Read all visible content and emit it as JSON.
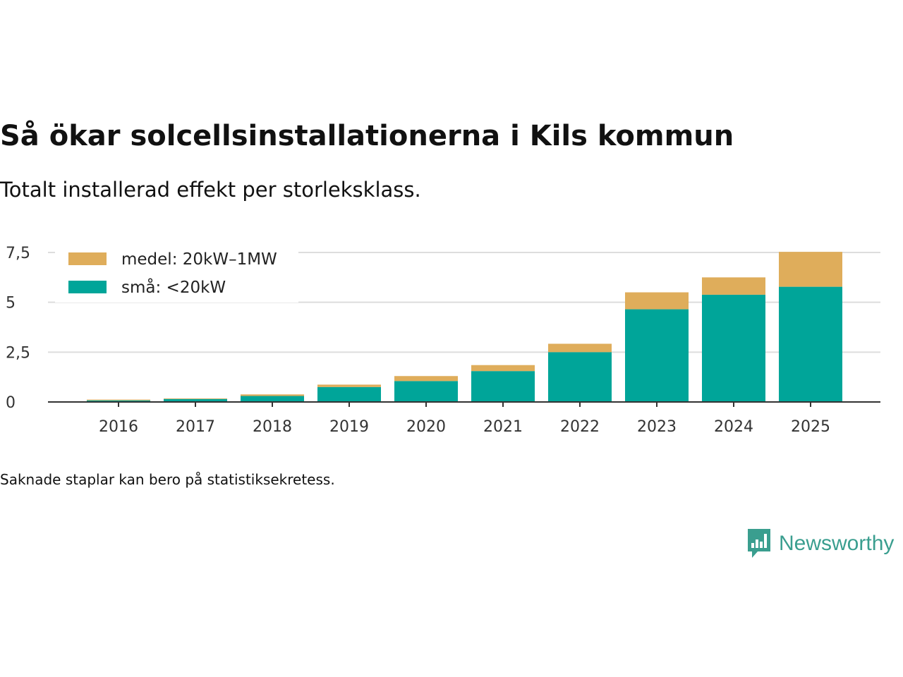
{
  "chart_data": {
    "type": "bar",
    "stacked": true,
    "title": "Så ökar solcellsinstallationerna i Kils kommun",
    "subtitle": "Totalt installerad effekt per storleksklass.",
    "xlabel": "",
    "ylabel": "",
    "categories": [
      "2016",
      "2017",
      "2018",
      "2019",
      "2020",
      "2021",
      "2022",
      "2023",
      "2024",
      "2025"
    ],
    "series": [
      {
        "name": "små: <20kW",
        "color": "#00a599",
        "values": [
          0.08,
          0.15,
          0.3,
          0.75,
          1.05,
          1.55,
          2.5,
          4.65,
          5.38,
          5.78
        ]
      },
      {
        "name": "medel: 20kW–1MW",
        "color": "#dfad5b",
        "values": [
          0.04,
          0.03,
          0.08,
          0.12,
          0.25,
          0.3,
          0.42,
          0.85,
          0.87,
          1.75
        ]
      }
    ],
    "ylim": [
      0,
      7.5
    ],
    "yticks": [
      0,
      2.5,
      5,
      7.5
    ],
    "ytick_labels": [
      "0",
      "2,5",
      "5",
      "7,5"
    ],
    "grid": true,
    "legend_position": "top-left",
    "footnote": "Saknade staplar kan bero på statistiksekretess."
  },
  "brand": {
    "name": "Newsworthy",
    "color": "#3a9e8f"
  }
}
